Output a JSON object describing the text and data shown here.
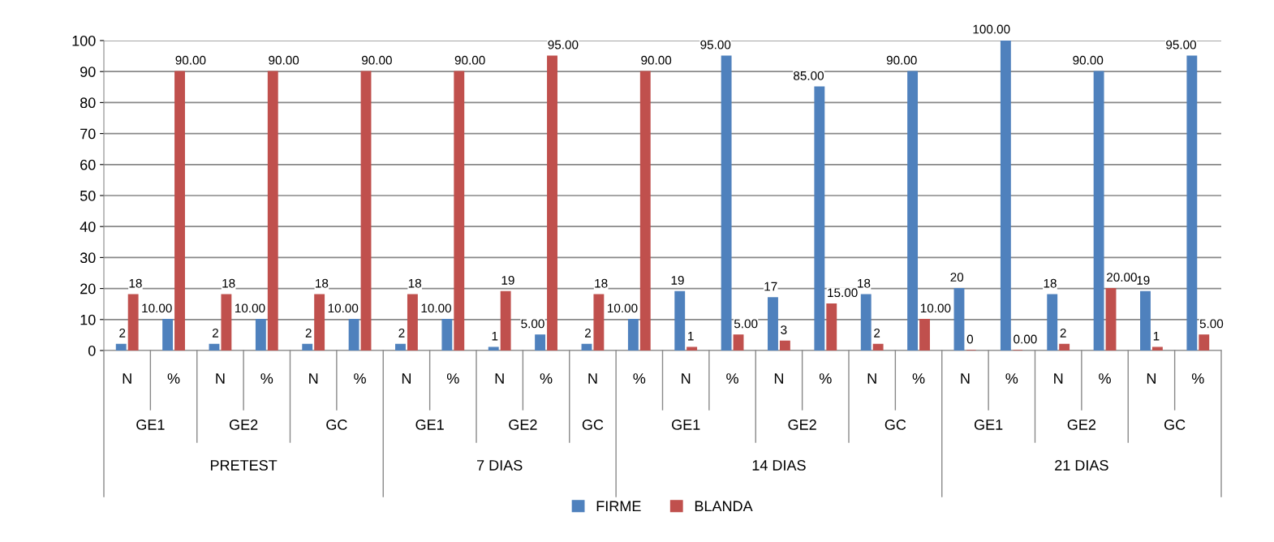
{
  "chart_data": {
    "type": "bar",
    "categories": [
      "N",
      "%",
      "N",
      "%",
      "N",
      "%",
      "N",
      "%",
      "N",
      "%",
      "N",
      "%",
      "N",
      "%",
      "N",
      "%",
      "N",
      "%",
      "N",
      "%",
      "N",
      "%",
      "N",
      "%"
    ],
    "series": [
      {
        "name": "FIRME",
        "color": "#4f81bd",
        "values": [
          2,
          10,
          2,
          10,
          2,
          10,
          2,
          10,
          1,
          5,
          2,
          10,
          19,
          95,
          17,
          85,
          18,
          90,
          20,
          100,
          18,
          90,
          19,
          95
        ],
        "value_labels": [
          "2",
          "10.00",
          "2",
          "10.00",
          "2",
          "10.00",
          "2",
          "10.00",
          "1",
          "5.00",
          "2",
          "10.00",
          "19",
          "95.00",
          "17",
          "85.00",
          "18",
          "90.00",
          "20",
          "100.00",
          "18",
          "90.00",
          "19",
          "95.00"
        ]
      },
      {
        "name": "BLANDA",
        "color": "#c0504d",
        "values": [
          18,
          90,
          18,
          90,
          18,
          90,
          18,
          90,
          19,
          95,
          18,
          90,
          1,
          5,
          3,
          15,
          2,
          10,
          0,
          0,
          2,
          20,
          1,
          5
        ],
        "value_labels": [
          "18",
          "90.00",
          "18",
          "90.00",
          "18",
          "90.00",
          "18",
          "90.00",
          "19",
          "95.00",
          "18",
          "90.00",
          "1",
          "5.00",
          "3",
          "15.00",
          "2",
          "10.00",
          "0",
          "0.00",
          "2",
          "20.00",
          "1",
          "5.00"
        ]
      }
    ],
    "annotations": [
      "GE1",
      "GE2",
      "GC",
      "GE1",
      "GE2",
      "GC",
      "GE1",
      "GE2",
      "GC",
      "GE1",
      "GE2",
      "GC",
      "PRETEST",
      "7 DIAS",
      "14 DIAS",
      "21 DIAS"
    ],
    "ylim": [
      0,
      100
    ],
    "yticks": [
      0,
      10,
      20,
      30,
      40,
      50,
      60,
      70,
      80,
      90,
      100
    ],
    "grid": "y",
    "legend": "bottom"
  }
}
